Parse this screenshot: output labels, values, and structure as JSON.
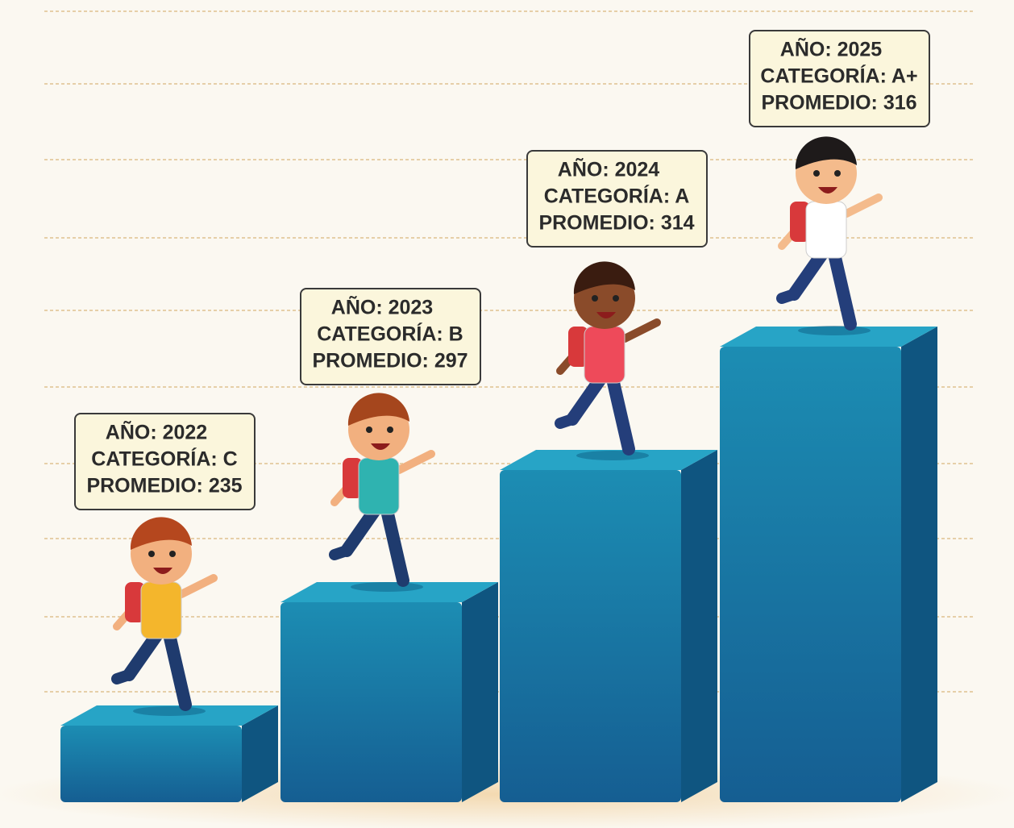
{
  "steps": [
    {
      "year": "AÑO: 2022",
      "category": "CATEGORÍA: C",
      "average": "PROMEDIO: 235"
    },
    {
      "year": "AÑO: 2023",
      "category": "CATEGORÍA: B",
      "average": "PROMEDIO: 297"
    },
    {
      "year": "AÑO: 2024",
      "category": "CATEGORÍA: A",
      "average": "PROMEDIO: 314"
    },
    {
      "year": "AÑO: 2025",
      "category": "CATEGORÍA: A+",
      "average": "PROMEDIO: 316"
    }
  ]
}
